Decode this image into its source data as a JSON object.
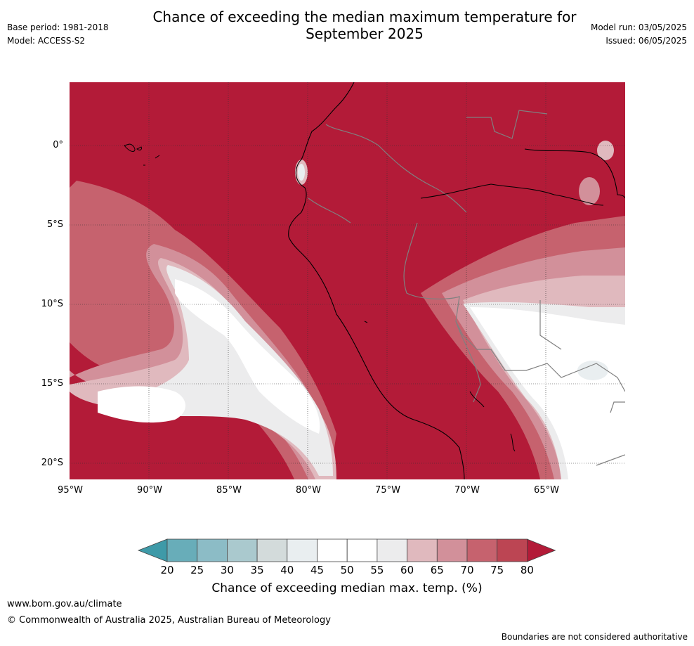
{
  "header": {
    "title_line1": "Chance of exceeding the median maximum temperature for",
    "title_line2": "September 2025",
    "base_period": "Base period: 1981-2018",
    "model": "Model: ACCESS-S2",
    "model_run": "Model run: 03/05/2025",
    "issued": "Issued: 06/05/2025"
  },
  "map": {
    "lat_labels": [
      "0°",
      "5°S",
      "10°S",
      "15°S",
      "20°S"
    ],
    "lon_labels": [
      "95°W",
      "90°W",
      "85°W",
      "80°W",
      "75°W",
      "70°W",
      "65°W"
    ],
    "background_color": "#b31b38",
    "coastline_color": "#000000",
    "border_color": "#808080"
  },
  "colorbar": {
    "ticks": [
      "20",
      "25",
      "30",
      "35",
      "40",
      "45",
      "50",
      "55",
      "60",
      "65",
      "70",
      "75",
      "80"
    ],
    "colors": [
      "#3e9aa8",
      "#68adb9",
      "#8cbcc6",
      "#aac9ce",
      "#d3dbdb",
      "#e9eef0",
      "#ffffff",
      "#ffffff",
      "#ececed",
      "#e0b9be",
      "#d2909a",
      "#c6626e",
      "#bc4553",
      "#b31b38"
    ],
    "label": "Chance of exceeding median max. temp. (%)"
  },
  "footer": {
    "url": "www.bom.gov.au/climate",
    "copyright": "© Commonwealth of Australia 2025, Australian Bureau of Meteorology",
    "disclaimer": "Boundaries are not considered authoritative"
  }
}
